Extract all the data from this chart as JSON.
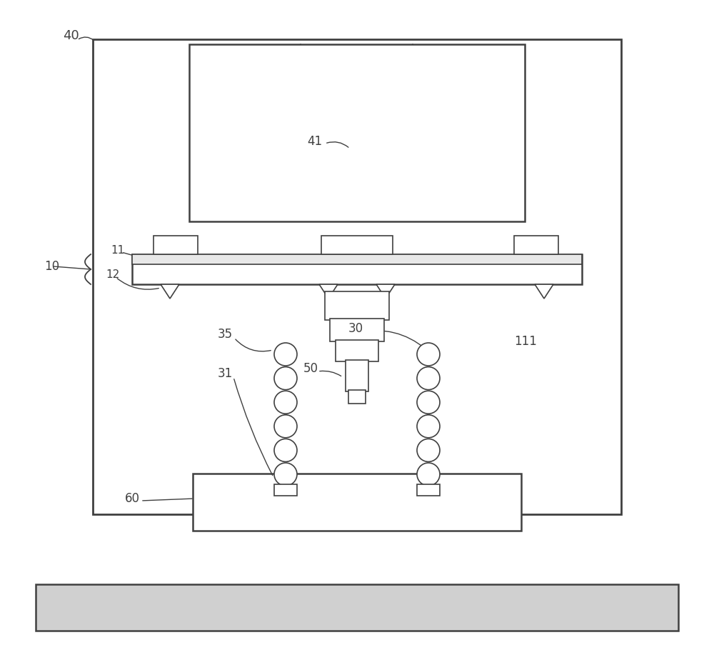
{
  "bg_color": "#ffffff",
  "line_color": "#404040",
  "dashed_color": "#888888",
  "fig_width": 10.0,
  "fig_height": 9.38
}
